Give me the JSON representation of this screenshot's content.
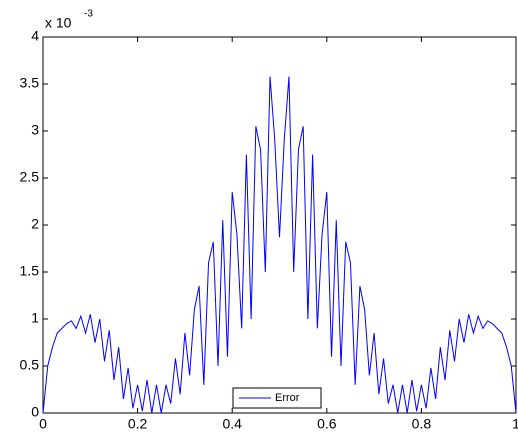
{
  "chart_data": {
    "type": "line",
    "y_scale_label": "x 10",
    "y_scale_exponent": "-3",
    "x": [
      0,
      0.01,
      0.02,
      0.03,
      0.04,
      0.05,
      0.06,
      0.07,
      0.08,
      0.09,
      0.1,
      0.11,
      0.12,
      0.13,
      0.14,
      0.15,
      0.16,
      0.17,
      0.18,
      0.19,
      0.2,
      0.21,
      0.22,
      0.23,
      0.24,
      0.25,
      0.26,
      0.27,
      0.28,
      0.29,
      0.3,
      0.31,
      0.32,
      0.33,
      0.34,
      0.35,
      0.36,
      0.37,
      0.38,
      0.39,
      0.4,
      0.41,
      0.42,
      0.43,
      0.44,
      0.45,
      0.46,
      0.47,
      0.48,
      0.49,
      0.5,
      0.51,
      0.52,
      0.53,
      0.54,
      0.55,
      0.56,
      0.57,
      0.58,
      0.59,
      0.6,
      0.61,
      0.62,
      0.63,
      0.64,
      0.65,
      0.66,
      0.67,
      0.68,
      0.69,
      0.7,
      0.71,
      0.72,
      0.73,
      0.74,
      0.75,
      0.76,
      0.77,
      0.78,
      0.79,
      0.8,
      0.81,
      0.82,
      0.83,
      0.84,
      0.85,
      0.86,
      0.87,
      0.88,
      0.89,
      0.9,
      0.91,
      0.92,
      0.93,
      0.94,
      0.95,
      0.96,
      0.97,
      0.98,
      0.99,
      1
    ],
    "series": [
      {
        "name": "Error",
        "color": "#0000ff",
        "values": [
          0,
          0.5,
          0.7,
          0.85,
          0.9,
          0.95,
          0.98,
          0.9,
          1.03,
          0.85,
          1.05,
          0.75,
          1.0,
          0.55,
          0.88,
          0.35,
          0.7,
          0.15,
          0.48,
          0.05,
          0.3,
          0.02,
          0.35,
          0,
          0.3,
          0,
          0.3,
          0.1,
          0.58,
          0.2,
          0.85,
          0.4,
          1.1,
          1.35,
          0.3,
          1.6,
          1.82,
          0.5,
          2.05,
          0.6,
          2.35,
          1.9,
          0.9,
          2.75,
          1.0,
          3.05,
          2.8,
          1.5,
          3.58,
          2.9,
          1.87,
          2.9,
          3.58,
          1.5,
          2.8,
          3.05,
          1.0,
          2.75,
          0.9,
          1.9,
          2.35,
          0.6,
          2.05,
          0.5,
          1.82,
          1.6,
          0.3,
          1.35,
          1.1,
          0.4,
          0.85,
          0.2,
          0.58,
          0.1,
          0.3,
          0,
          0.3,
          0,
          0.35,
          0.02,
          0.3,
          0.05,
          0.48,
          0.15,
          0.7,
          0.35,
          0.88,
          0.55,
          1.0,
          0.75,
          1.05,
          0.85,
          1.03,
          0.9,
          0.98,
          0.95,
          0.9,
          0.85,
          0.7,
          0.5,
          0
        ]
      }
    ],
    "xlim": [
      0,
      1
    ],
    "xticks": [
      0,
      0.2,
      0.4,
      0.6,
      0.8,
      1
    ],
    "ylim": [
      0,
      4
    ],
    "yticks": [
      0,
      0.5,
      1,
      1.5,
      2,
      2.5,
      3,
      3.5,
      4
    ],
    "grid": false,
    "legend": "bottom"
  }
}
